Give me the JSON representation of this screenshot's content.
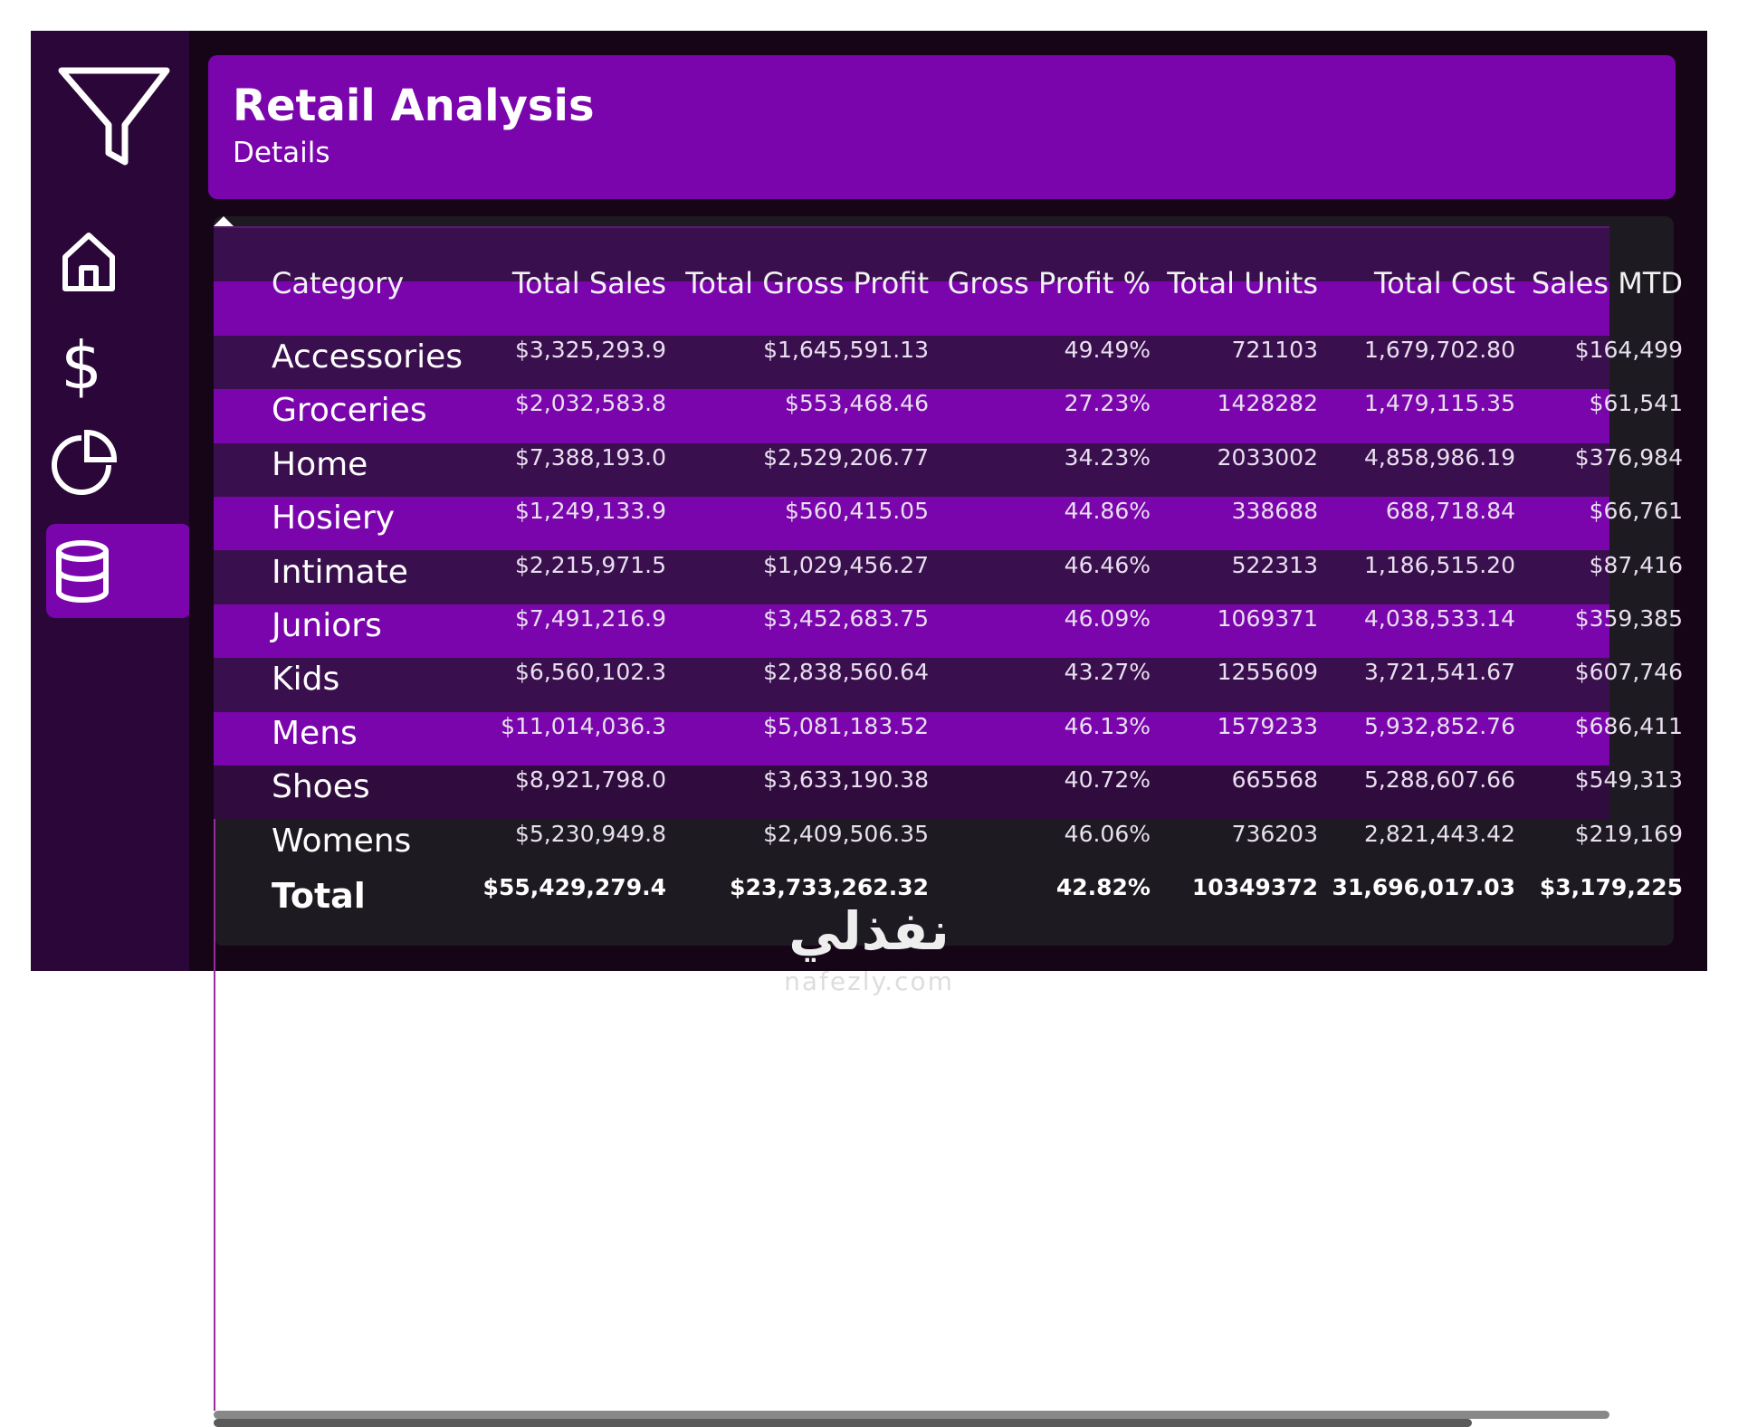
{
  "header": {
    "title": "Retail Analysis",
    "subtitle": "Details"
  },
  "table": {
    "columns": [
      "Category",
      "Total Sales",
      "Total Gross Profit",
      "Gross Profit %",
      "Total Units",
      "Total Cost",
      "Sales MTD"
    ],
    "rows": [
      [
        "Accessories",
        "$3,325,293.9",
        "$1,645,591.13",
        "49.49%",
        "721103",
        "1,679,702.80",
        "$164,499"
      ],
      [
        "Groceries",
        "$2,032,583.8",
        "$553,468.46",
        "27.23%",
        "1428282",
        "1,479,115.35",
        "$61,541"
      ],
      [
        "Home",
        "$7,388,193.0",
        "$2,529,206.77",
        "34.23%",
        "2033002",
        "4,858,986.19",
        "$376,984"
      ],
      [
        "Hosiery",
        "$1,249,133.9",
        "$560,415.05",
        "44.86%",
        "338688",
        "688,718.84",
        "$66,761"
      ],
      [
        "Intimate",
        "$2,215,971.5",
        "$1,029,456.27",
        "46.46%",
        "522313",
        "1,186,515.20",
        "$87,416"
      ],
      [
        "Juniors",
        "$7,491,216.9",
        "$3,452,683.75",
        "46.09%",
        "1069371",
        "4,038,533.14",
        "$359,385"
      ],
      [
        "Kids",
        "$6,560,102.3",
        "$2,838,560.64",
        "43.27%",
        "1255609",
        "3,721,541.67",
        "$607,746"
      ],
      [
        "Mens",
        "$11,014,036.3",
        "$5,081,183.52",
        "46.13%",
        "1579233",
        "5,932,852.76",
        "$686,411"
      ],
      [
        "Shoes",
        "$8,921,798.0",
        "$3,633,190.38",
        "40.72%",
        "665568",
        "5,288,607.66",
        "$549,313"
      ],
      [
        "Womens",
        "$5,230,949.8",
        "$2,409,506.35",
        "46.06%",
        "736203",
        "2,821,443.42",
        "$219,169"
      ]
    ],
    "total": [
      "Total",
      "$55,429,279.4",
      "$23,733,262.32",
      "42.82%",
      "10349372",
      "31,696,017.03",
      "$3,179,225"
    ]
  },
  "watermark": {
    "arabic": "نفذلي",
    "latin": "nafezly.com"
  }
}
